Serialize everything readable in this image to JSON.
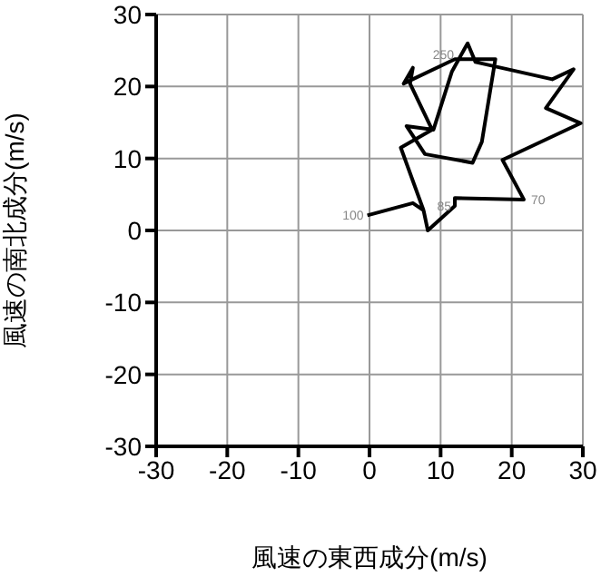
{
  "chart_data": {
    "type": "line",
    "xlabel": "風速の東西成分(m/s)",
    "ylabel": "風速の南北成分(m/s)",
    "xlim": [
      -30,
      30
    ],
    "ylim": [
      -30,
      30
    ],
    "xticks": [
      -30,
      -20,
      -10,
      0,
      10,
      20,
      30
    ],
    "yticks": [
      -30,
      -20,
      -10,
      0,
      10,
      20,
      30
    ],
    "grid": true,
    "marker": "none",
    "line_style": "solid",
    "series": [
      {
        "color": "#000000",
        "x": [
          -0.3,
          6.1,
          7.6,
          8.2,
          12.0,
          12.0,
          21.7,
          18.7,
          29.7,
          24.8,
          28.7,
          25.7,
          14.9,
          13.8,
          11.6,
          9.0,
          5.2,
          7.8,
          14.5,
          15.8,
          17.7,
          12.0,
          4.8,
          6.1,
          5.7,
          8.8,
          4.4,
          7.6
        ],
        "values": [
          2.1,
          3.8,
          2.8,
          0,
          3.4,
          4.5,
          4.3,
          9.8,
          14.9,
          17.0,
          22.4,
          21.0,
          23.4,
          26.0,
          22.1,
          14.0,
          14.5,
          10.6,
          9.4,
          12.3,
          23.8,
          23.8,
          20.4,
          22.6,
          20.4,
          14.0,
          11.5,
          2.8
        ]
      }
    ],
    "annotations": [
      {
        "text": "100",
        "x": -0.3,
        "y": 2.1
      },
      {
        "text": "85",
        "x": 12.0,
        "y": 3.4
      },
      {
        "text": "70",
        "x": 21.7,
        "y": 4.3
      },
      {
        "text": "250",
        "x": 12.4,
        "y": 24.4
      }
    ]
  }
}
